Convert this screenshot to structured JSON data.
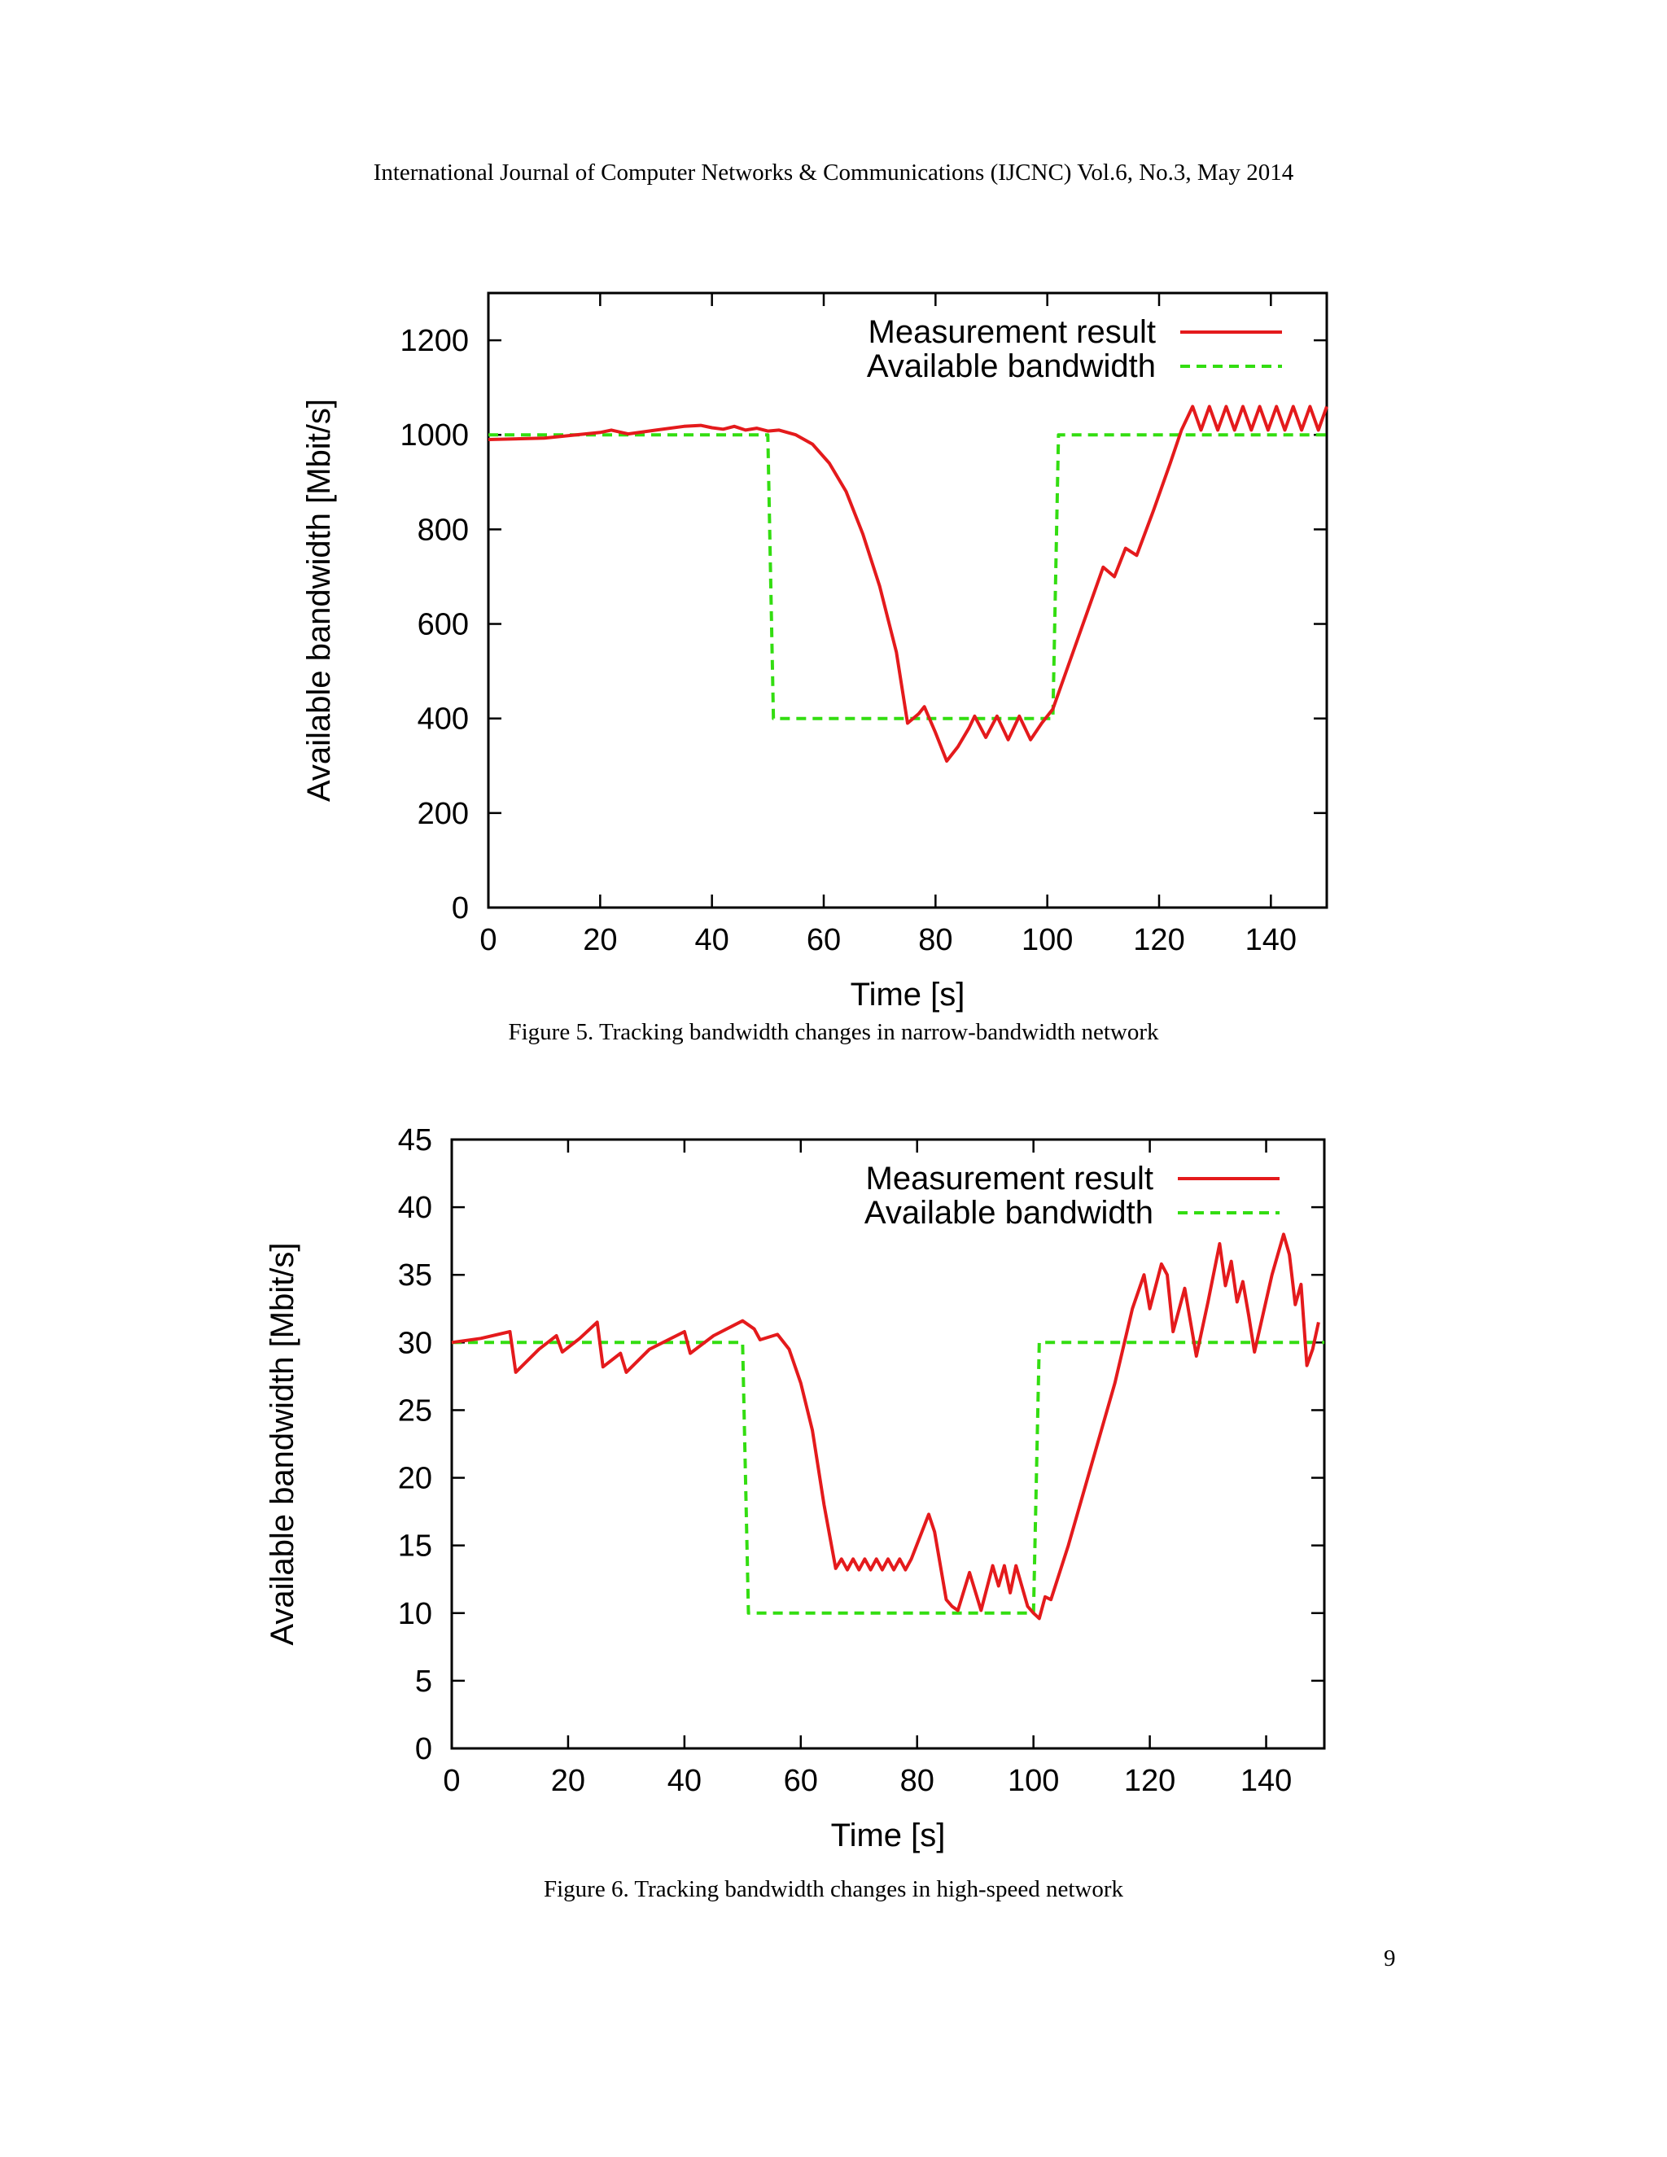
{
  "header": {
    "running_title": "International Journal of Computer Networks & Communications (IJCNC) Vol.6, No.3, May 2014"
  },
  "page_number": "9",
  "figures": [
    {
      "caption": "Figure 5. Tracking bandwidth changes in narrow-bandwidth network"
    },
    {
      "caption": "Figure 6. Tracking bandwidth changes in high-speed network"
    }
  ],
  "chart_data": [
    {
      "type": "line",
      "xlabel": "Time [s]",
      "ylabel": "Available bandwidth [Mbit/s]",
      "xlim": [
        0,
        150
      ],
      "ylim": [
        0,
        1300
      ],
      "xticks": [
        0,
        20,
        40,
        60,
        80,
        100,
        120,
        140
      ],
      "yticks": [
        0,
        200,
        400,
        600,
        800,
        1000,
        1200
      ],
      "grid": false,
      "legend": "top-right",
      "series": [
        {
          "name": "Measurement result",
          "color": "#e41a1c",
          "style": "solid",
          "points": [
            [
              0,
              990
            ],
            [
              10,
              993
            ],
            [
              20,
              1005
            ],
            [
              22,
              1010
            ],
            [
              25,
              1002
            ],
            [
              30,
              1010
            ],
            [
              35,
              1018
            ],
            [
              38,
              1020
            ],
            [
              40,
              1015
            ],
            [
              42,
              1012
            ],
            [
              44,
              1018
            ],
            [
              46,
              1010
            ],
            [
              48,
              1014
            ],
            [
              50,
              1008
            ],
            [
              52,
              1010
            ],
            [
              55,
              1000
            ],
            [
              58,
              980
            ],
            [
              61,
              940
            ],
            [
              64,
              880
            ],
            [
              67,
              790
            ],
            [
              70,
              680
            ],
            [
              73,
              540
            ],
            [
              75,
              390
            ],
            [
              77,
              410
            ],
            [
              78,
              425
            ],
            [
              80,
              370
            ],
            [
              82,
              310
            ],
            [
              84,
              340
            ],
            [
              86,
              380
            ],
            [
              87,
              405
            ],
            [
              89,
              360
            ],
            [
              91,
              405
            ],
            [
              93,
              355
            ],
            [
              95,
              405
            ],
            [
              97,
              355
            ],
            [
              99,
              390
            ],
            [
              101,
              420
            ],
            [
              104,
              520
            ],
            [
              107,
              620
            ],
            [
              110,
              720
            ],
            [
              112,
              700
            ],
            [
              114,
              760
            ],
            [
              116,
              745
            ],
            [
              119,
              840
            ],
            [
              122,
              940
            ],
            [
              124,
              1010
            ],
            [
              126,
              1060
            ],
            [
              127.5,
              1010
            ],
            [
              129,
              1060
            ],
            [
              130.5,
              1010
            ],
            [
              132,
              1060
            ],
            [
              133.5,
              1010
            ],
            [
              135,
              1060
            ],
            [
              136.5,
              1010
            ],
            [
              138,
              1060
            ],
            [
              139.5,
              1010
            ],
            [
              141,
              1060
            ],
            [
              142.5,
              1010
            ],
            [
              144,
              1060
            ],
            [
              145.5,
              1010
            ],
            [
              147,
              1060
            ],
            [
              148.5,
              1010
            ],
            [
              150,
              1060
            ]
          ]
        },
        {
          "name": "Available bandwidth",
          "color": "#33dd11",
          "style": "dashed",
          "points": [
            [
              0,
              1000
            ],
            [
              50,
              1000
            ],
            [
              51,
              400
            ],
            [
              101,
              400
            ],
            [
              102,
              1000
            ],
            [
              150,
              1000
            ]
          ]
        }
      ]
    },
    {
      "type": "line",
      "xlabel": "Time [s]",
      "ylabel": "Available bandwidth [Mbit/s]",
      "xlim": [
        0,
        150
      ],
      "ylim": [
        0,
        45
      ],
      "xticks": [
        0,
        20,
        40,
        60,
        80,
        100,
        120,
        140
      ],
      "yticks": [
        0,
        5,
        10,
        15,
        20,
        25,
        30,
        35,
        40,
        45
      ],
      "grid": false,
      "legend": "top-right",
      "series": [
        {
          "name": "Measurement result",
          "color": "#e41a1c",
          "style": "solid",
          "points": [
            [
              0,
              30
            ],
            [
              5,
              30.3
            ],
            [
              10,
              30.8
            ],
            [
              11,
              27.8
            ],
            [
              15,
              29.5
            ],
            [
              18,
              30.5
            ],
            [
              19,
              29.3
            ],
            [
              22,
              30.3
            ],
            [
              25,
              31.5
            ],
            [
              26,
              28.2
            ],
            [
              29,
              29.2
            ],
            [
              30,
              27.8
            ],
            [
              34,
              29.5
            ],
            [
              40,
              30.8
            ],
            [
              41,
              29.2
            ],
            [
              45,
              30.5
            ],
            [
              50,
              31.6
            ],
            [
              52,
              31
            ],
            [
              53,
              30.2
            ],
            [
              56,
              30.6
            ],
            [
              58,
              29.5
            ],
            [
              60,
              27
            ],
            [
              62,
              23.5
            ],
            [
              64,
              18
            ],
            [
              66,
              13.3
            ],
            [
              67,
              14
            ],
            [
              68,
              13.2
            ],
            [
              69,
              14
            ],
            [
              70,
              13.2
            ],
            [
              71,
              14
            ],
            [
              72,
              13.2
            ],
            [
              73,
              14
            ],
            [
              74,
              13.2
            ],
            [
              75,
              14
            ],
            [
              76,
              13.2
            ],
            [
              77,
              14
            ],
            [
              78,
              13.2
            ],
            [
              79,
              14
            ],
            [
              82,
              17.3
            ],
            [
              83,
              16
            ],
            [
              85,
              11
            ],
            [
              86,
              10.5
            ],
            [
              87,
              10.2
            ],
            [
              89,
              13
            ],
            [
              91,
              10.2
            ],
            [
              93,
              13.5
            ],
            [
              94,
              12
            ],
            [
              95,
              13.5
            ],
            [
              96,
              11.5
            ],
            [
              97,
              13.5
            ],
            [
              99,
              10.5
            ],
            [
              100,
              10
            ],
            [
              101,
              9.6
            ],
            [
              102,
              11.2
            ],
            [
              103,
              11
            ],
            [
              106,
              15
            ],
            [
              110,
              21
            ],
            [
              114,
              27
            ],
            [
              117,
              32.5
            ],
            [
              119,
              35
            ],
            [
              120,
              32.5
            ],
            [
              122,
              35.8
            ],
            [
              123,
              35
            ],
            [
              124,
              30.8
            ],
            [
              126,
              34
            ],
            [
              128,
              29
            ],
            [
              130,
              33
            ],
            [
              132,
              37.3
            ],
            [
              133,
              34.2
            ],
            [
              134,
              36
            ],
            [
              135,
              33
            ],
            [
              136,
              34.5
            ],
            [
              137,
              32
            ],
            [
              138,
              29.3
            ],
            [
              141,
              35
            ],
            [
              143,
              38
            ],
            [
              144,
              36.5
            ],
            [
              145,
              32.8
            ],
            [
              146,
              34.3
            ],
            [
              147,
              28.3
            ],
            [
              148,
              29.5
            ],
            [
              149,
              31.5
            ]
          ]
        },
        {
          "name": "Available bandwidth",
          "color": "#33dd11",
          "style": "dashed",
          "points": [
            [
              0,
              30
            ],
            [
              50,
              30
            ],
            [
              51,
              10
            ],
            [
              100,
              10
            ],
            [
              101,
              30
            ],
            [
              150,
              30
            ]
          ]
        }
      ]
    }
  ]
}
